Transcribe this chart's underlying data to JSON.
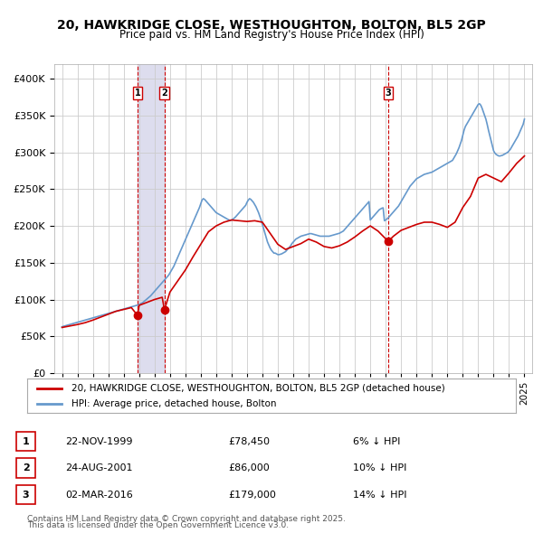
{
  "title": "20, HAWKRIDGE CLOSE, WESTHOUGHTON, BOLTON, BL5 2GP",
  "subtitle": "Price paid vs. HM Land Registry's House Price Index (HPI)",
  "legend_line1": "20, HAWKRIDGE CLOSE, WESTHOUGHTON, BOLTON, BL5 2GP (detached house)",
  "legend_line2": "HPI: Average price, detached house, Bolton",
  "footer_line1": "Contains HM Land Registry data © Crown copyright and database right 2025.",
  "footer_line2": "This data is licensed under the Open Government Licence v3.0.",
  "transactions": [
    {
      "num": 1,
      "date": "22-NOV-1999",
      "price": 78450,
      "rel": "6% ↓ HPI",
      "x": 1999.896
    },
    {
      "num": 2,
      "date": "24-AUG-2001",
      "price": 86000,
      "rel": "10% ↓ HPI",
      "x": 2001.644
    },
    {
      "num": 3,
      "date": "02-MAR-2016",
      "price": 179000,
      "rel": "14% ↓ HPI",
      "x": 2016.164
    }
  ],
  "red_line_color": "#cc0000",
  "blue_line_color": "#6699cc",
  "vline_color": "#cc0000",
  "vband_color": "#ddddee",
  "dot_color": "#cc0000",
  "grid_color": "#cccccc",
  "background_color": "#ffffff",
  "xlim": [
    1994.5,
    2025.5
  ],
  "ylim": [
    0,
    420000
  ],
  "yticks": [
    0,
    50000,
    100000,
    150000,
    200000,
    250000,
    300000,
    350000,
    400000
  ],
  "xticks": [
    1995,
    1996,
    1997,
    1998,
    1999,
    2000,
    2001,
    2002,
    2003,
    2004,
    2005,
    2006,
    2007,
    2008,
    2009,
    2010,
    2011,
    2012,
    2013,
    2014,
    2015,
    2016,
    2017,
    2018,
    2019,
    2020,
    2021,
    2022,
    2023,
    2024,
    2025
  ],
  "hpi_data": {
    "years": [
      1995.0,
      1995.083,
      1995.167,
      1995.25,
      1995.333,
      1995.417,
      1995.5,
      1995.583,
      1995.667,
      1995.75,
      1995.833,
      1995.917,
      1996.0,
      1996.083,
      1996.167,
      1996.25,
      1996.333,
      1996.417,
      1996.5,
      1996.583,
      1996.667,
      1996.75,
      1996.833,
      1996.917,
      1997.0,
      1997.083,
      1997.167,
      1997.25,
      1997.333,
      1997.417,
      1997.5,
      1997.583,
      1997.667,
      1997.75,
      1997.833,
      1997.917,
      1998.0,
      1998.083,
      1998.167,
      1998.25,
      1998.333,
      1998.417,
      1998.5,
      1998.583,
      1998.667,
      1998.75,
      1998.833,
      1998.917,
      1999.0,
      1999.083,
      1999.167,
      1999.25,
      1999.333,
      1999.417,
      1999.5,
      1999.583,
      1999.667,
      1999.75,
      1999.833,
      1999.917,
      2000.0,
      2000.083,
      2000.167,
      2000.25,
      2000.333,
      2000.417,
      2000.5,
      2000.583,
      2000.667,
      2000.75,
      2000.833,
      2000.917,
      2001.0,
      2001.083,
      2001.167,
      2001.25,
      2001.333,
      2001.417,
      2001.5,
      2001.583,
      2001.667,
      2001.75,
      2001.833,
      2001.917,
      2002.0,
      2002.083,
      2002.167,
      2002.25,
      2002.333,
      2002.417,
      2002.5,
      2002.583,
      2002.667,
      2002.75,
      2002.833,
      2002.917,
      2003.0,
      2003.083,
      2003.167,
      2003.25,
      2003.333,
      2003.417,
      2003.5,
      2003.583,
      2003.667,
      2003.75,
      2003.833,
      2003.917,
      2004.0,
      2004.083,
      2004.167,
      2004.25,
      2004.333,
      2004.417,
      2004.5,
      2004.583,
      2004.667,
      2004.75,
      2004.833,
      2004.917,
      2005.0,
      2005.083,
      2005.167,
      2005.25,
      2005.333,
      2005.417,
      2005.5,
      2005.583,
      2005.667,
      2005.75,
      2005.833,
      2005.917,
      2006.0,
      2006.083,
      2006.167,
      2006.25,
      2006.333,
      2006.417,
      2006.5,
      2006.583,
      2006.667,
      2006.75,
      2006.833,
      2006.917,
      2007.0,
      2007.083,
      2007.167,
      2007.25,
      2007.333,
      2007.417,
      2007.5,
      2007.583,
      2007.667,
      2007.75,
      2007.833,
      2007.917,
      2008.0,
      2008.083,
      2008.167,
      2008.25,
      2008.333,
      2008.417,
      2008.5,
      2008.583,
      2008.667,
      2008.75,
      2008.833,
      2008.917,
      2009.0,
      2009.083,
      2009.167,
      2009.25,
      2009.333,
      2009.417,
      2009.5,
      2009.583,
      2009.667,
      2009.75,
      2009.833,
      2009.917,
      2010.0,
      2010.083,
      2010.167,
      2010.25,
      2010.333,
      2010.417,
      2010.5,
      2010.583,
      2010.667,
      2010.75,
      2010.833,
      2010.917,
      2011.0,
      2011.083,
      2011.167,
      2011.25,
      2011.333,
      2011.417,
      2011.5,
      2011.583,
      2011.667,
      2011.75,
      2011.833,
      2011.917,
      2012.0,
      2012.083,
      2012.167,
      2012.25,
      2012.333,
      2012.417,
      2012.5,
      2012.583,
      2012.667,
      2012.75,
      2012.833,
      2012.917,
      2013.0,
      2013.083,
      2013.167,
      2013.25,
      2013.333,
      2013.417,
      2013.5,
      2013.583,
      2013.667,
      2013.75,
      2013.833,
      2013.917,
      2014.0,
      2014.083,
      2014.167,
      2014.25,
      2014.333,
      2014.417,
      2014.5,
      2014.583,
      2014.667,
      2014.75,
      2014.833,
      2014.917,
      2015.0,
      2015.083,
      2015.167,
      2015.25,
      2015.333,
      2015.417,
      2015.5,
      2015.583,
      2015.667,
      2015.75,
      2015.833,
      2015.917,
      2016.0,
      2016.083,
      2016.167,
      2016.25,
      2016.333,
      2016.417,
      2016.5,
      2016.583,
      2016.667,
      2016.75,
      2016.833,
      2016.917,
      2017.0,
      2017.083,
      2017.167,
      2017.25,
      2017.333,
      2017.417,
      2017.5,
      2017.583,
      2017.667,
      2017.75,
      2017.833,
      2017.917,
      2018.0,
      2018.083,
      2018.167,
      2018.25,
      2018.333,
      2018.417,
      2018.5,
      2018.583,
      2018.667,
      2018.75,
      2018.833,
      2018.917,
      2019.0,
      2019.083,
      2019.167,
      2019.25,
      2019.333,
      2019.417,
      2019.5,
      2019.583,
      2019.667,
      2019.75,
      2019.833,
      2019.917,
      2020.0,
      2020.083,
      2020.167,
      2020.25,
      2020.333,
      2020.417,
      2020.5,
      2020.583,
      2020.667,
      2020.75,
      2020.833,
      2020.917,
      2021.0,
      2021.083,
      2021.167,
      2021.25,
      2021.333,
      2021.417,
      2021.5,
      2021.583,
      2021.667,
      2021.75,
      2021.833,
      2021.917,
      2022.0,
      2022.083,
      2022.167,
      2022.25,
      2022.333,
      2022.417,
      2022.5,
      2022.583,
      2022.667,
      2022.75,
      2022.833,
      2022.917,
      2023.0,
      2023.083,
      2023.167,
      2023.25,
      2023.333,
      2023.417,
      2023.5,
      2023.583,
      2023.667,
      2023.75,
      2023.833,
      2023.917,
      2024.0,
      2024.083,
      2024.167,
      2024.25,
      2024.333,
      2024.417,
      2024.5,
      2024.583,
      2024.667,
      2024.75,
      2024.833,
      2024.917,
      2025.0
    ],
    "values": [
      63000,
      63500,
      64000,
      64500,
      65000,
      65500,
      66000,
      66500,
      67000,
      67500,
      68000,
      68500,
      69000,
      69500,
      70000,
      70500,
      71000,
      71500,
      72000,
      72500,
      73000,
      73500,
      74000,
      74500,
      75000,
      75500,
      76000,
      76500,
      77000,
      77500,
      78000,
      78500,
      79000,
      79500,
      80000,
      80500,
      81000,
      81500,
      82000,
      82500,
      83000,
      83500,
      84000,
      84500,
      85000,
      85500,
      86000,
      86500,
      87000,
      87500,
      88000,
      88500,
      89000,
      89500,
      90000,
      90500,
      91000,
      91500,
      92000,
      92500,
      93000,
      94000,
      95000,
      96000,
      97500,
      99000,
      100500,
      102000,
      103500,
      105000,
      107000,
      109000,
      111000,
      113000,
      115000,
      117000,
      119000,
      121000,
      123000,
      125000,
      127000,
      129000,
      131000,
      133000,
      136000,
      139000,
      142000,
      145000,
      149000,
      153000,
      157000,
      161000,
      165000,
      169000,
      173000,
      177000,
      181000,
      185000,
      189000,
      193000,
      197000,
      201000,
      205000,
      209000,
      213000,
      217000,
      221000,
      225000,
      230000,
      235000,
      237000,
      236000,
      234000,
      232000,
      230000,
      228000,
      226000,
      224000,
      222000,
      220000,
      218000,
      217000,
      216000,
      215000,
      214000,
      213000,
      212000,
      211000,
      210000,
      209000,
      208000,
      207500,
      208000,
      209000,
      210500,
      212000,
      214000,
      216000,
      218000,
      220000,
      222000,
      224000,
      226000,
      228000,
      232000,
      235000,
      237000,
      236000,
      234000,
      232000,
      229000,
      226000,
      222000,
      218000,
      213000,
      208000,
      202000,
      196000,
      190000,
      184000,
      178000,
      174000,
      170000,
      167000,
      165000,
      163000,
      163000,
      162000,
      161000,
      161000,
      161500,
      162000,
      163000,
      164000,
      165000,
      167000,
      169000,
      171000,
      173000,
      176000,
      178000,
      180000,
      182000,
      183000,
      184000,
      185000,
      186000,
      186500,
      187000,
      187500,
      188000,
      188500,
      189000,
      189500,
      189500,
      189000,
      188500,
      188000,
      187500,
      187000,
      186500,
      186000,
      186000,
      186000,
      186000,
      186000,
      186000,
      186000,
      186000,
      186500,
      187000,
      187500,
      188000,
      188500,
      189000,
      189500,
      190000,
      191000,
      192000,
      193000,
      195000,
      197000,
      199000,
      201000,
      203000,
      205000,
      207000,
      209000,
      211000,
      213000,
      215000,
      217000,
      219000,
      221000,
      223000,
      225000,
      227000,
      229000,
      231000,
      233000,
      208000,
      210000,
      212000,
      214000,
      216000,
      218000,
      220000,
      222000,
      223000,
      224000,
      224500,
      207000,
      208000,
      209500,
      211000,
      213000,
      215000,
      217000,
      219000,
      221000,
      223000,
      225000,
      227000,
      230000,
      233000,
      236000,
      239000,
      242000,
      245000,
      248000,
      251000,
      254000,
      256000,
      258000,
      260000,
      262000,
      264000,
      265000,
      266000,
      267000,
      268000,
      269000,
      270000,
      270500,
      271000,
      271500,
      272000,
      272500,
      273000,
      274000,
      275000,
      276000,
      277000,
      278000,
      279000,
      280000,
      281000,
      282000,
      283000,
      284000,
      285000,
      286000,
      287000,
      288000,
      289000,
      292000,
      295000,
      298000,
      302000,
      306000,
      311000,
      316000,
      323000,
      330000,
      335000,
      338000,
      341000,
      344000,
      347000,
      350000,
      353000,
      356000,
      359000,
      362000,
      365000,
      366000,
      364000,
      360000,
      355000,
      350000,
      345000,
      338000,
      330000,
      323000,
      316000,
      309000,
      302000,
      299000,
      297000,
      296000,
      295000,
      295000,
      295500,
      296000,
      297000,
      298000,
      299000,
      300000,
      302000,
      304000,
      307000,
      310000,
      313000,
      316000,
      319000,
      322000,
      326000,
      330000,
      334000,
      338000,
      345000
    ]
  },
  "red_line_data": {
    "years": [
      1995.0,
      1995.5,
      1996.0,
      1996.5,
      1997.0,
      1997.5,
      1998.0,
      1998.5,
      1999.0,
      1999.5,
      1999.896,
      2000.0,
      2000.5,
      2001.0,
      2001.5,
      2001.644,
      2002.0,
      2002.5,
      2003.0,
      2003.5,
      2004.0,
      2004.5,
      2005.0,
      2005.5,
      2006.0,
      2006.5,
      2007.0,
      2007.5,
      2008.0,
      2008.5,
      2009.0,
      2009.5,
      2010.0,
      2010.5,
      2011.0,
      2011.5,
      2012.0,
      2012.5,
      2013.0,
      2013.5,
      2014.0,
      2014.5,
      2015.0,
      2015.5,
      2016.164,
      2016.5,
      2017.0,
      2017.5,
      2018.0,
      2018.5,
      2019.0,
      2019.5,
      2020.0,
      2020.5,
      2021.0,
      2021.5,
      2022.0,
      2022.5,
      2023.0,
      2023.5,
      2024.0,
      2024.5,
      2025.0
    ],
    "values": [
      62000,
      64000,
      66000,
      68500,
      72000,
      76000,
      80000,
      84000,
      86500,
      89000,
      78450,
      92000,
      96000,
      100000,
      103000,
      86000,
      110000,
      125000,
      140000,
      158000,
      175000,
      192000,
      200000,
      205000,
      208000,
      207000,
      206000,
      207000,
      205000,
      190000,
      175000,
      168000,
      172000,
      176000,
      182000,
      178000,
      172000,
      170000,
      173000,
      178000,
      185000,
      193000,
      200000,
      193000,
      179000,
      186000,
      194000,
      198000,
      202000,
      205000,
      205000,
      202000,
      198000,
      205000,
      225000,
      240000,
      265000,
      270000,
      265000,
      260000,
      272000,
      285000,
      295000
    ]
  }
}
